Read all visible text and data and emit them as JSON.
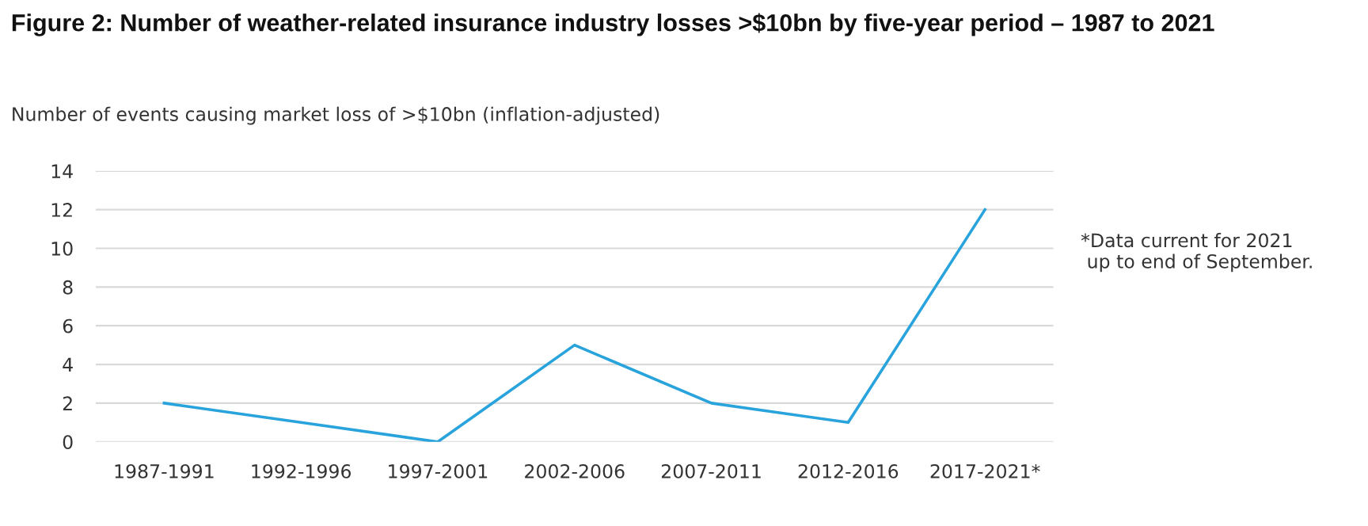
{
  "chart_data": {
    "type": "line",
    "title": "Figure 2: Number of weather-related insurance industry losses >$10bn by five-year period – 1987 to 2021",
    "ylabel": "Number of events causing market loss of >$10bn (inflation-adjusted)",
    "annotations": [
      "*Data current for 2021\n up to end of September."
    ],
    "categories": [
      "1987-1991",
      "1992-1996",
      "1997-2001",
      "2002-2006",
      "2007-2011",
      "2012-2016",
      "2017-2021*"
    ],
    "series": [
      {
        "color": "#29a3dc",
        "values": [
          2,
          1,
          0,
          5,
          2,
          1,
          12
        ]
      }
    ],
    "ylim": [
      0,
      14
    ],
    "yticks": [
      0,
      2,
      4,
      6,
      8,
      10,
      12,
      14
    ],
    "grid": "y",
    "marker": "none",
    "line_style": "solid"
  }
}
